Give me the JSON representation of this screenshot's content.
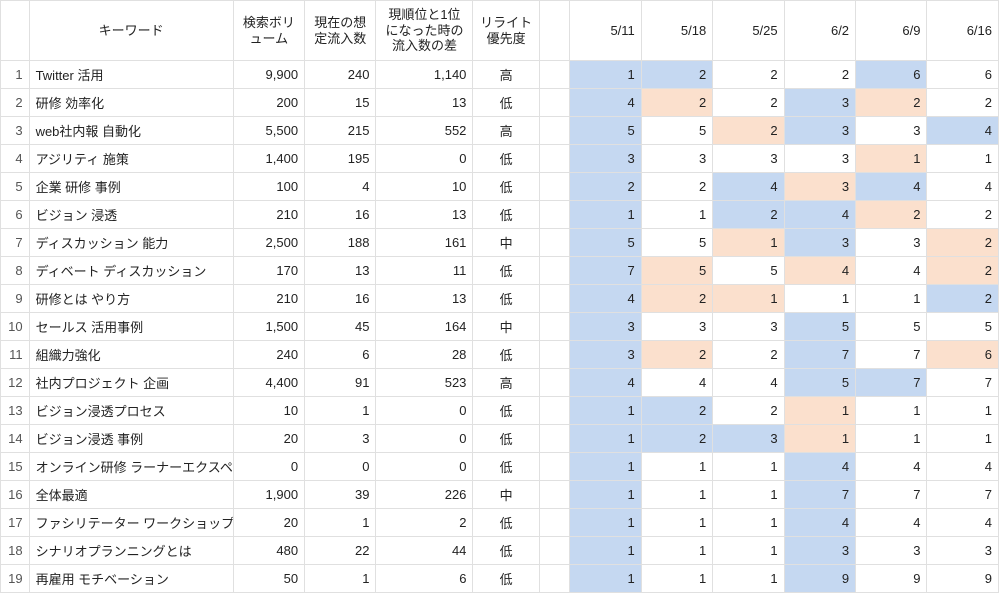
{
  "colors": {
    "highlight_blue": "#c5d8f1",
    "highlight_orange": "#fbe0cd",
    "border": "#e0e0e0",
    "background": "#ffffff"
  },
  "headers": {
    "keyword": "キーワード",
    "volume": "検索ボリューム",
    "current": "現在の想定流入数",
    "diff": "現順位と1位になった時の流入数の差",
    "priority": "リライト優先度"
  },
  "date_columns": [
    "5/11",
    "5/18",
    "5/25",
    "6/2",
    "6/9",
    "6/16"
  ],
  "rows": [
    {
      "n": 1,
      "kw": "Twitter 活用",
      "vol": "9,900",
      "cur": "240",
      "diff": "1,140",
      "pri": "高",
      "ranks": [
        {
          "v": 1,
          "c": "blue"
        },
        {
          "v": 2,
          "c": "blue"
        },
        {
          "v": 2,
          "c": null
        },
        {
          "v": 2,
          "c": null
        },
        {
          "v": 6,
          "c": "blue"
        },
        {
          "v": 6,
          "c": null
        }
      ]
    },
    {
      "n": 2,
      "kw": "研修 効率化",
      "vol": "200",
      "cur": "15",
      "diff": "13",
      "pri": "低",
      "ranks": [
        {
          "v": 4,
          "c": "blue"
        },
        {
          "v": 2,
          "c": "orange"
        },
        {
          "v": 2,
          "c": null
        },
        {
          "v": 3,
          "c": "blue"
        },
        {
          "v": 2,
          "c": "orange"
        },
        {
          "v": 2,
          "c": null
        }
      ]
    },
    {
      "n": 3,
      "kw": "web社内報 自動化",
      "vol": "5,500",
      "cur": "215",
      "diff": "552",
      "pri": "高",
      "ranks": [
        {
          "v": 5,
          "c": "blue"
        },
        {
          "v": 5,
          "c": null
        },
        {
          "v": 2,
          "c": "orange"
        },
        {
          "v": 3,
          "c": "blue"
        },
        {
          "v": 3,
          "c": null
        },
        {
          "v": 4,
          "c": "blue"
        }
      ]
    },
    {
      "n": 4,
      "kw": "アジリティ 施策",
      "vol": "1,400",
      "cur": "195",
      "diff": "0",
      "pri": "低",
      "ranks": [
        {
          "v": 3,
          "c": "blue"
        },
        {
          "v": 3,
          "c": null
        },
        {
          "v": 3,
          "c": null
        },
        {
          "v": 3,
          "c": null
        },
        {
          "v": 1,
          "c": "orange"
        },
        {
          "v": 1,
          "c": null
        }
      ]
    },
    {
      "n": 5,
      "kw": "企業 研修 事例",
      "vol": "100",
      "cur": "4",
      "diff": "10",
      "pri": "低",
      "ranks": [
        {
          "v": 2,
          "c": "blue"
        },
        {
          "v": 2,
          "c": null
        },
        {
          "v": 4,
          "c": "blue"
        },
        {
          "v": 3,
          "c": "orange"
        },
        {
          "v": 4,
          "c": "blue"
        },
        {
          "v": 4,
          "c": null
        }
      ]
    },
    {
      "n": 6,
      "kw": "ビジョン 浸透",
      "vol": "210",
      "cur": "16",
      "diff": "13",
      "pri": "低",
      "ranks": [
        {
          "v": 1,
          "c": "blue"
        },
        {
          "v": 1,
          "c": null
        },
        {
          "v": 2,
          "c": "blue"
        },
        {
          "v": 4,
          "c": "blue"
        },
        {
          "v": 2,
          "c": "orange"
        },
        {
          "v": 2,
          "c": null
        }
      ]
    },
    {
      "n": 7,
      "kw": "ディスカッション 能力",
      "vol": "2,500",
      "cur": "188",
      "diff": "161",
      "pri": "中",
      "ranks": [
        {
          "v": 5,
          "c": "blue"
        },
        {
          "v": 5,
          "c": null
        },
        {
          "v": 1,
          "c": "orange"
        },
        {
          "v": 3,
          "c": "blue"
        },
        {
          "v": 3,
          "c": null
        },
        {
          "v": 2,
          "c": "orange"
        }
      ]
    },
    {
      "n": 8,
      "kw": "ディベート ディスカッション",
      "vol": "170",
      "cur": "13",
      "diff": "11",
      "pri": "低",
      "ranks": [
        {
          "v": 7,
          "c": "blue"
        },
        {
          "v": 5,
          "c": "orange"
        },
        {
          "v": 5,
          "c": null
        },
        {
          "v": 4,
          "c": "orange"
        },
        {
          "v": 4,
          "c": null
        },
        {
          "v": 2,
          "c": "orange"
        }
      ]
    },
    {
      "n": 9,
      "kw": "研修とは やり方",
      "vol": "210",
      "cur": "16",
      "diff": "13",
      "pri": "低",
      "ranks": [
        {
          "v": 4,
          "c": "blue"
        },
        {
          "v": 2,
          "c": "orange"
        },
        {
          "v": 1,
          "c": "orange"
        },
        {
          "v": 1,
          "c": null
        },
        {
          "v": 1,
          "c": null
        },
        {
          "v": 2,
          "c": "blue"
        }
      ]
    },
    {
      "n": 10,
      "kw": "セールス 活用事例",
      "vol": "1,500",
      "cur": "45",
      "diff": "164",
      "pri": "中",
      "ranks": [
        {
          "v": 3,
          "c": "blue"
        },
        {
          "v": 3,
          "c": null
        },
        {
          "v": 3,
          "c": null
        },
        {
          "v": 5,
          "c": "blue"
        },
        {
          "v": 5,
          "c": null
        },
        {
          "v": 5,
          "c": null
        }
      ]
    },
    {
      "n": 11,
      "kw": "組織力強化",
      "vol": "240",
      "cur": "6",
      "diff": "28",
      "pri": "低",
      "ranks": [
        {
          "v": 3,
          "c": "blue"
        },
        {
          "v": 2,
          "c": "orange"
        },
        {
          "v": 2,
          "c": null
        },
        {
          "v": 7,
          "c": "blue"
        },
        {
          "v": 7,
          "c": null
        },
        {
          "v": 6,
          "c": "orange"
        }
      ]
    },
    {
      "n": 12,
      "kw": "社内プロジェクト 企画",
      "vol": "4,400",
      "cur": "91",
      "diff": "523",
      "pri": "高",
      "ranks": [
        {
          "v": 4,
          "c": "blue"
        },
        {
          "v": 4,
          "c": null
        },
        {
          "v": 4,
          "c": null
        },
        {
          "v": 5,
          "c": "blue"
        },
        {
          "v": 7,
          "c": "blue"
        },
        {
          "v": 7,
          "c": null
        }
      ]
    },
    {
      "n": 13,
      "kw": "ビジョン浸透プロセス",
      "vol": "10",
      "cur": "1",
      "diff": "0",
      "pri": "低",
      "ranks": [
        {
          "v": 1,
          "c": "blue"
        },
        {
          "v": 2,
          "c": "blue"
        },
        {
          "v": 2,
          "c": null
        },
        {
          "v": 1,
          "c": "orange"
        },
        {
          "v": 1,
          "c": null
        },
        {
          "v": 1,
          "c": null
        }
      ]
    },
    {
      "n": 14,
      "kw": "ビジョン浸透 事例",
      "vol": "20",
      "cur": "3",
      "diff": "0",
      "pri": "低",
      "ranks": [
        {
          "v": 1,
          "c": "blue"
        },
        {
          "v": 2,
          "c": "blue"
        },
        {
          "v": 3,
          "c": "blue"
        },
        {
          "v": 1,
          "c": "orange"
        },
        {
          "v": 1,
          "c": null
        },
        {
          "v": 1,
          "c": null
        }
      ]
    },
    {
      "n": 15,
      "kw": "オンライン研修 ラーナーエクスペリ",
      "vol": "0",
      "cur": "0",
      "diff": "0",
      "pri": "低",
      "ranks": [
        {
          "v": 1,
          "c": "blue"
        },
        {
          "v": 1,
          "c": null
        },
        {
          "v": 1,
          "c": null
        },
        {
          "v": 4,
          "c": "blue"
        },
        {
          "v": 4,
          "c": null
        },
        {
          "v": 4,
          "c": null
        }
      ]
    },
    {
      "n": 16,
      "kw": "全体最適",
      "vol": "1,900",
      "cur": "39",
      "diff": "226",
      "pri": "中",
      "ranks": [
        {
          "v": 1,
          "c": "blue"
        },
        {
          "v": 1,
          "c": null
        },
        {
          "v": 1,
          "c": null
        },
        {
          "v": 7,
          "c": "blue"
        },
        {
          "v": 7,
          "c": null
        },
        {
          "v": 7,
          "c": null
        }
      ]
    },
    {
      "n": 17,
      "kw": "ファシリテーター ワークショップ",
      "vol": "20",
      "cur": "1",
      "diff": "2",
      "pri": "低",
      "ranks": [
        {
          "v": 1,
          "c": "blue"
        },
        {
          "v": 1,
          "c": null
        },
        {
          "v": 1,
          "c": null
        },
        {
          "v": 4,
          "c": "blue"
        },
        {
          "v": 4,
          "c": null
        },
        {
          "v": 4,
          "c": null
        }
      ]
    },
    {
      "n": 18,
      "kw": "シナリオプランニングとは",
      "vol": "480",
      "cur": "22",
      "diff": "44",
      "pri": "低",
      "ranks": [
        {
          "v": 1,
          "c": "blue"
        },
        {
          "v": 1,
          "c": null
        },
        {
          "v": 1,
          "c": null
        },
        {
          "v": 3,
          "c": "blue"
        },
        {
          "v": 3,
          "c": null
        },
        {
          "v": 3,
          "c": null
        }
      ]
    },
    {
      "n": 19,
      "kw": "再雇用 モチベーション",
      "vol": "50",
      "cur": "1",
      "diff": "6",
      "pri": "低",
      "ranks": [
        {
          "v": 1,
          "c": "blue"
        },
        {
          "v": 1,
          "c": null
        },
        {
          "v": 1,
          "c": null
        },
        {
          "v": 9,
          "c": "blue"
        },
        {
          "v": 9,
          "c": null
        },
        {
          "v": 9,
          "c": null
        }
      ]
    }
  ]
}
